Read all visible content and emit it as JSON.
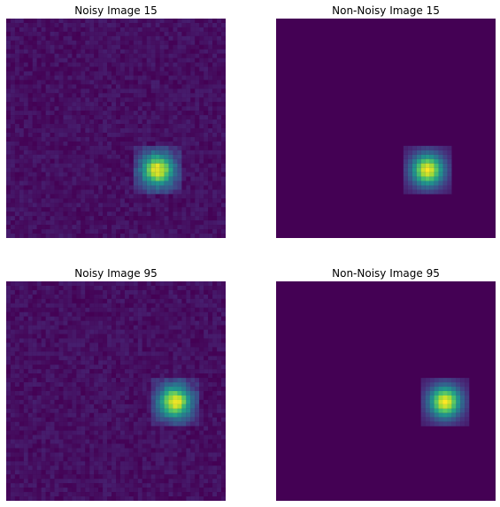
{
  "chart_data": [
    {
      "type": "heatmap",
      "title": "Noisy Image 15",
      "colormap": "viridis",
      "grid_size": 50,
      "noisy": true,
      "blob": {
        "center_col": 34.5,
        "center_row": 34.5,
        "half_width": 5,
        "sigma": 2.5
      }
    },
    {
      "type": "heatmap",
      "title": "Non-Noisy Image 15",
      "colormap": "viridis",
      "grid_size": 50,
      "noisy": false,
      "blob": {
        "center_col": 34.5,
        "center_row": 34.5,
        "half_width": 5,
        "sigma": 2.5
      }
    },
    {
      "type": "heatmap",
      "title": "Noisy Image 95",
      "colormap": "viridis",
      "grid_size": 50,
      "noisy": true,
      "blob": {
        "center_col": 38.5,
        "center_row": 27.5,
        "half_width": 5,
        "sigma": 2.5
      }
    },
    {
      "type": "heatmap",
      "title": "Non-Noisy Image 95",
      "colormap": "viridis",
      "grid_size": 50,
      "noisy": false,
      "blob": {
        "center_col": 38.5,
        "center_row": 27.5,
        "half_width": 5,
        "sigma": 2.5
      }
    }
  ],
  "colors": {
    "viridis_low": "#440154",
    "viridis_mid": "#21918c",
    "viridis_high": "#fde725",
    "background": "#ffffff"
  }
}
